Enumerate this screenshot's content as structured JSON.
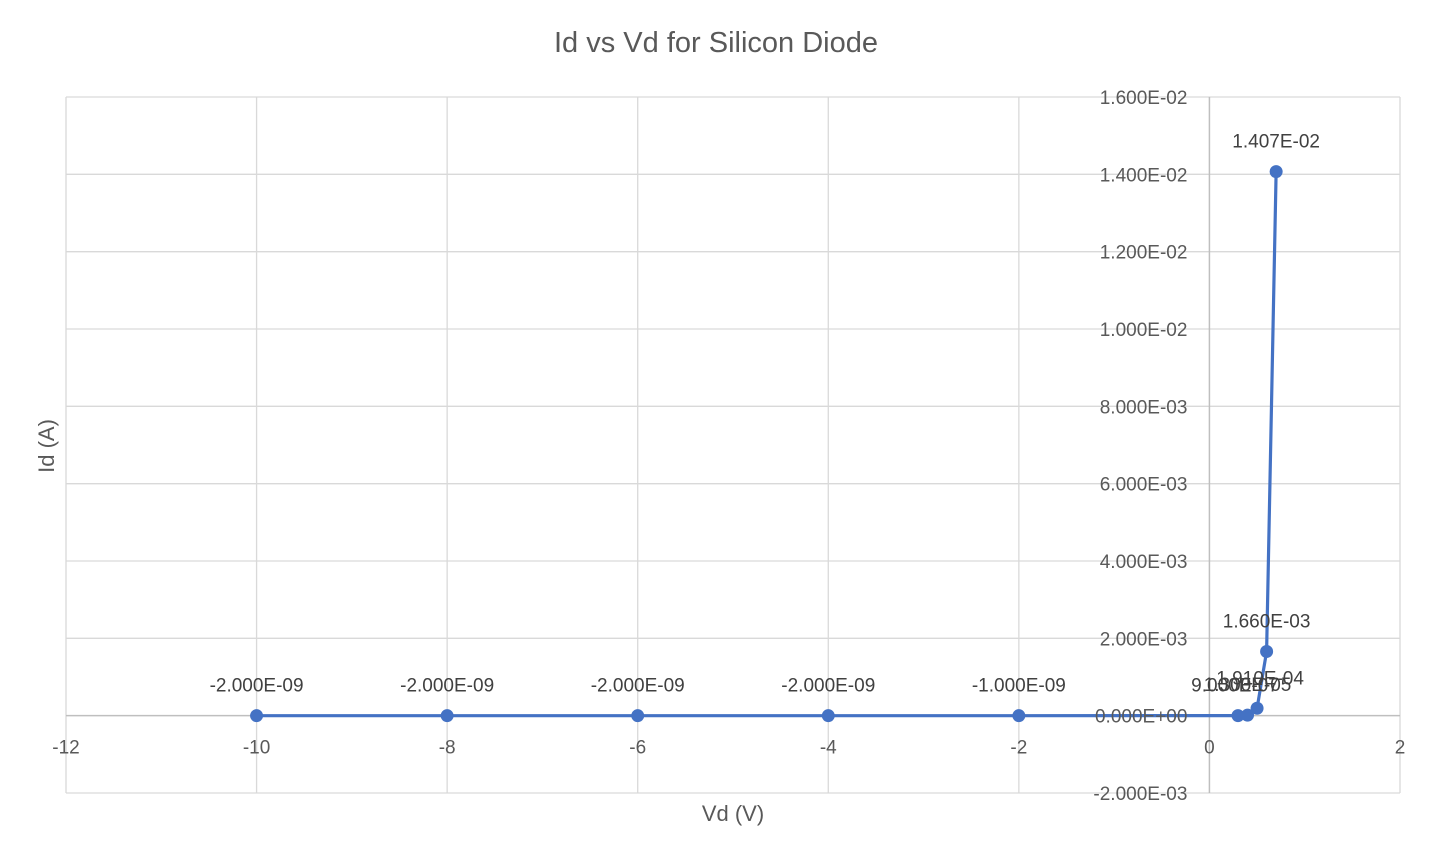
{
  "chart_data": {
    "type": "scatter",
    "title": "Id vs Vd for Silicon Diode",
    "xlabel": "Vd (V)",
    "ylabel": "Id (A)",
    "xlim": [
      -12,
      2
    ],
    "ylim": [
      -0.002,
      0.016
    ],
    "x_ticks": [
      -12,
      -10,
      -8,
      -6,
      -4,
      -2,
      0,
      2
    ],
    "x_tick_labels": [
      "-12",
      "-10",
      "-8",
      "-6",
      "-4",
      "-2",
      "0",
      "2"
    ],
    "y_ticks": [
      -0.002,
      0,
      0.002,
      0.004,
      0.006,
      0.008,
      0.01,
      0.012,
      0.014,
      0.016
    ],
    "y_tick_labels": [
      "-2.000E-03",
      "0.000E+00",
      "2.000E-03",
      "4.000E-03",
      "6.000E-03",
      "8.000E-03",
      "1.000E-02",
      "1.200E-02",
      "1.400E-02",
      "1.600E-02"
    ],
    "grid": true,
    "legend": "none",
    "series_color": "#4472c4",
    "series": [
      {
        "x": [
          -10,
          -8,
          -6,
          -4,
          -2,
          0.3,
          0.4,
          0.5,
          0.6,
          0.7
        ],
        "y": [
          -2e-09,
          -2e-09,
          -2e-09,
          -2e-09,
          -1e-09,
          9e-07,
          1.3e-05,
          0.000191,
          0.00166,
          0.01407
        ],
        "labels": [
          "-2.000E-09",
          "-2.000E-09",
          "-2.000E-09",
          "-2.000E-09",
          "-1.000E-09",
          "9.000E-07",
          "1.300E-05",
          "1.910E-04",
          "1.660E-03",
          "1.407E-02"
        ]
      }
    ]
  }
}
